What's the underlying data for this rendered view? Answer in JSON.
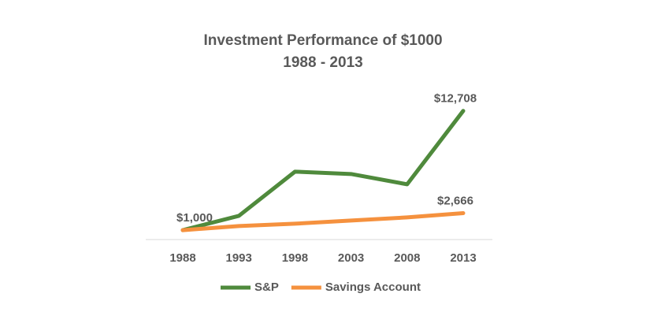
{
  "chart_data": {
    "type": "line",
    "title": "Investment Performance of $1000",
    "subtitle": "1988 - 2013",
    "categories": [
      "1988",
      "1993",
      "1998",
      "2003",
      "2008",
      "2013"
    ],
    "series": [
      {
        "name": "S&P",
        "color": "#4f8a3c",
        "values": [
          1000,
          2400,
          6740,
          6510,
          5500,
          12708
        ],
        "value_labels": [
          "$1,000",
          null,
          null,
          null,
          null,
          "$12,708"
        ]
      },
      {
        "name": "Savings Account",
        "color": "#f5913e",
        "values": [
          1000,
          1400,
          1630,
          1940,
          2250,
          2666
        ],
        "value_labels": [
          null,
          null,
          null,
          null,
          null,
          "$2,666"
        ]
      }
    ],
    "ylim": [
      0,
      14000
    ],
    "legend": "bottom"
  }
}
